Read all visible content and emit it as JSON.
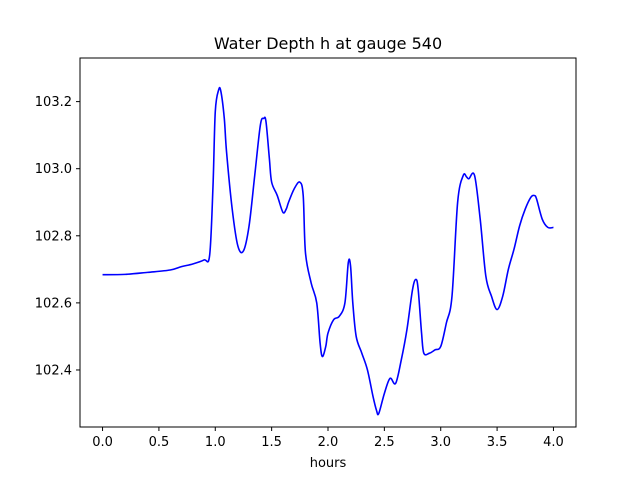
{
  "chart_data": {
    "type": "line",
    "title": "Water Depth h at gauge 540",
    "xlabel": "hours",
    "ylabel": "",
    "xlim": [
      -0.2,
      4.2
    ],
    "ylim": [
      102.23,
      103.33
    ],
    "xticks": [
      0.0,
      0.5,
      1.0,
      1.5,
      2.0,
      2.5,
      3.0,
      3.5,
      4.0
    ],
    "xtick_labels": [
      "0.0",
      "0.5",
      "1.0",
      "1.5",
      "2.0",
      "2.5",
      "3.0",
      "3.5",
      "4.0"
    ],
    "yticks": [
      102.4,
      102.6,
      102.8,
      103.0,
      103.2
    ],
    "ytick_labels": [
      "102.4",
      "102.6",
      "102.8",
      "103.0",
      "103.2"
    ],
    "grid": false,
    "series": [
      {
        "color": "#0000ff",
        "x": [
          0.0,
          0.2,
          0.4,
          0.6,
          0.7,
          0.8,
          0.9,
          0.95,
          0.98,
          1.0,
          1.03,
          1.05,
          1.08,
          1.1,
          1.15,
          1.2,
          1.25,
          1.3,
          1.35,
          1.4,
          1.43,
          1.45,
          1.48,
          1.5,
          1.55,
          1.6,
          1.63,
          1.65,
          1.7,
          1.75,
          1.78,
          1.8,
          1.85,
          1.9,
          1.93,
          1.95,
          1.98,
          2.0,
          2.05,
          2.1,
          2.15,
          2.18,
          2.2,
          2.22,
          2.25,
          2.3,
          2.35,
          2.4,
          2.43,
          2.45,
          2.5,
          2.55,
          2.6,
          2.65,
          2.7,
          2.75,
          2.78,
          2.8,
          2.83,
          2.85,
          2.9,
          2.95,
          3.0,
          3.05,
          3.1,
          3.15,
          3.2,
          3.23,
          3.25,
          3.3,
          3.35,
          3.4,
          3.45,
          3.5,
          3.55,
          3.6,
          3.65,
          3.7,
          3.75,
          3.8,
          3.83,
          3.85,
          3.9,
          3.95,
          4.0
        ],
        "y": [
          102.684,
          102.685,
          102.691,
          102.698,
          102.708,
          102.716,
          102.728,
          102.742,
          102.95,
          103.17,
          103.235,
          103.23,
          103.15,
          103.05,
          102.88,
          102.77,
          102.755,
          102.83,
          102.98,
          103.13,
          103.15,
          103.14,
          103.03,
          102.96,
          102.92,
          102.87,
          102.88,
          102.9,
          102.94,
          102.96,
          102.92,
          102.75,
          102.66,
          102.6,
          102.48,
          102.44,
          102.47,
          102.51,
          102.55,
          102.56,
          102.6,
          102.72,
          102.71,
          102.6,
          102.5,
          102.45,
          102.4,
          102.32,
          102.28,
          102.27,
          102.33,
          102.375,
          102.36,
          102.43,
          102.52,
          102.64,
          102.67,
          102.64,
          102.51,
          102.45,
          102.45,
          102.46,
          102.47,
          102.54,
          102.62,
          102.9,
          102.98,
          102.975,
          102.97,
          102.98,
          102.85,
          102.68,
          102.62,
          102.58,
          102.62,
          102.7,
          102.76,
          102.83,
          102.88,
          102.915,
          102.92,
          102.91,
          102.85,
          102.825,
          102.825
        ]
      }
    ]
  }
}
